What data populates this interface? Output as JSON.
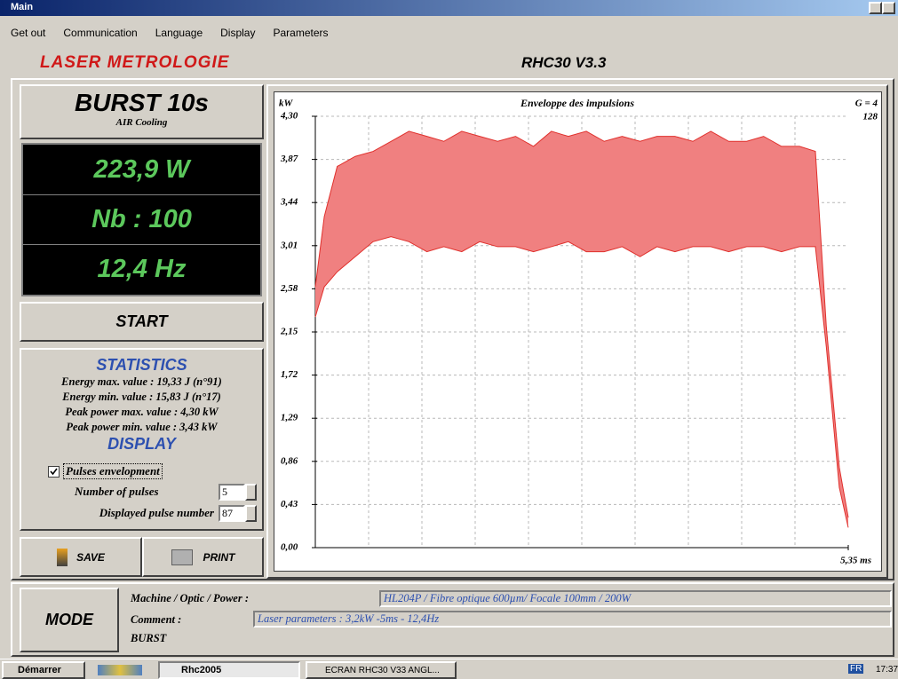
{
  "window": {
    "title": "Main"
  },
  "menu": [
    "Get out",
    "Communication",
    "Language",
    "Display",
    "Parameters"
  ],
  "header": {
    "brand": "LASER METROLOGIE",
    "version": "RHC30 V3.3"
  },
  "left_panel": {
    "mode_title": "BURST 10s",
    "cooling": "AIR Cooling",
    "readings": [
      "223,9 W",
      "Nb : 100",
      "12,4 Hz"
    ],
    "start_button": "START",
    "statistics": {
      "title": "STATISTICS",
      "lines": [
        "Energy max. value : 19,33 J (n°91)",
        "Energy min. value : 15,83 J (n°17)",
        "Peak power max. value : 4,30 kW",
        "Peak power min. value : 3,43 kW"
      ]
    },
    "display": {
      "title": "DISPLAY",
      "checkbox": "Pulses envelopment",
      "checked": true,
      "fields": [
        {
          "label": "Number of pulses",
          "value": 5
        },
        {
          "label": "Displayed pulse number",
          "value": 87
        }
      ]
    },
    "buttons": [
      "SAVE",
      "PRINT"
    ]
  },
  "chart_data": {
    "type": "band",
    "title": "Enveloppe des impulsions",
    "y_label": "kW",
    "gain_label": "G = 4",
    "count_label": "128",
    "x": [
      0.0,
      0.09,
      0.22,
      0.4,
      0.58,
      0.76,
      0.94,
      1.12,
      1.29,
      1.47,
      1.65,
      1.83,
      2.01,
      2.19,
      2.37,
      2.54,
      2.72,
      2.9,
      3.08,
      3.26,
      3.43,
      3.61,
      3.79,
      3.97,
      4.15,
      4.33,
      4.5,
      4.68,
      4.86,
      5.02,
      5.13,
      5.26,
      5.35
    ],
    "series": [
      {
        "color": "#e0302c",
        "values": [
          2.6,
          3.3,
          3.8,
          3.9,
          3.95,
          4.05,
          4.15,
          4.1,
          4.05,
          4.15,
          4.1,
          4.05,
          4.1,
          4.0,
          4.15,
          4.1,
          4.15,
          4.05,
          4.1,
          4.05,
          4.1,
          4.1,
          4.05,
          4.15,
          4.05,
          4.05,
          4.1,
          4.0,
          4.0,
          3.95,
          2.2,
          0.8,
          0.3
        ]
      },
      {
        "color": "#e0302c",
        "values": [
          2.3,
          2.6,
          2.75,
          2.9,
          3.05,
          3.1,
          3.05,
          2.95,
          3.0,
          2.95,
          3.05,
          3.0,
          3.0,
          2.95,
          3.0,
          3.05,
          2.95,
          2.95,
          3.0,
          2.9,
          3.0,
          2.95,
          3.0,
          3.0,
          2.95,
          3.0,
          3.0,
          2.95,
          3.0,
          3.0,
          2.0,
          0.6,
          0.2
        ]
      }
    ],
    "fill": "#f08080",
    "xlim": [
      0,
      5.35
    ],
    "xticks": [
      {
        "value": 5.35,
        "label": "5,35 ms"
      }
    ],
    "x_grid_divisions": 10,
    "ylim": [
      0,
      4.3
    ],
    "yticks": [
      {
        "value": 0,
        "label": "0,00"
      },
      {
        "value": 0.43,
        "label": "0,43"
      },
      {
        "value": 0.86,
        "label": "0,86"
      },
      {
        "value": 1.29,
        "label": "1,29"
      },
      {
        "value": 1.72,
        "label": "1,72"
      },
      {
        "value": 2.15,
        "label": "2,15"
      },
      {
        "value": 2.58,
        "label": "2,58"
      },
      {
        "value": 3.01,
        "label": "3,01"
      },
      {
        "value": 3.44,
        "label": "3,44"
      },
      {
        "value": 3.87,
        "label": "3,87"
      },
      {
        "value": 4.3,
        "label": "4,30"
      }
    ],
    "grid": true
  },
  "bottom": {
    "mode_button": "MODE",
    "labels": [
      "Machine / Optic / Power :",
      "Comment :"
    ],
    "machine": "HL204P / Fibre optique 600µm/ Focale 100mm / 200W",
    "comment": "Laser parameters : 3,2kW -5ms - 12,4Hz",
    "mode": "BURST"
  },
  "taskbar": {
    "start": "Démarrer",
    "tasks": [
      "Rhc2005",
      "ECRAN RHC30 V33 ANGL..."
    ],
    "lang": "FR",
    "clock": "17:37"
  }
}
